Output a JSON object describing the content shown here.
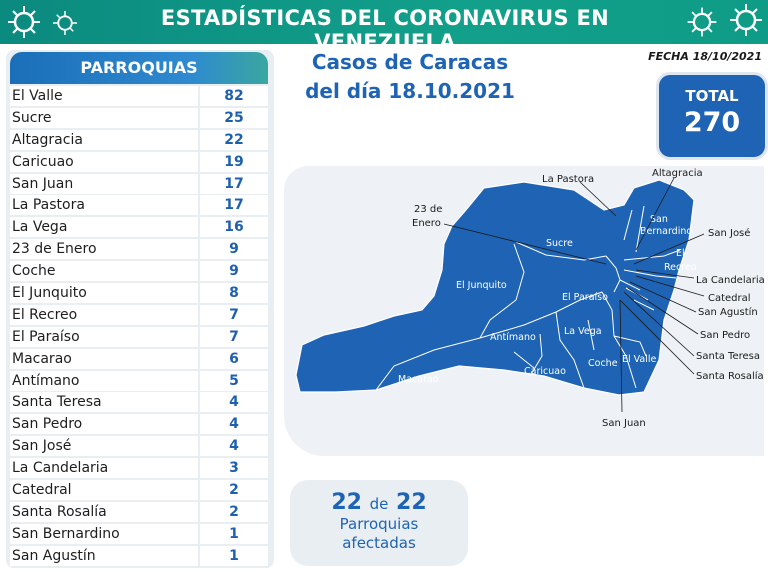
{
  "header": {
    "title": "ESTADÍSTICAS DEL CORONAVIRUS EN VENEZUELA"
  },
  "fecha": "FECHA 18/10/2021",
  "panel": {
    "title": "PARROQUIAS"
  },
  "parroquias": [
    {
      "name": "El Valle",
      "value": "82"
    },
    {
      "name": "Sucre",
      "value": "25"
    },
    {
      "name": "Altagracia",
      "value": "22"
    },
    {
      "name": "Caricuao",
      "value": "19"
    },
    {
      "name": "San Juan",
      "value": "17"
    },
    {
      "name": "La Pastora",
      "value": "17"
    },
    {
      "name": "La Vega",
      "value": "16"
    },
    {
      "name": "23 de Enero",
      "value": "9"
    },
    {
      "name": "Coche",
      "value": "9"
    },
    {
      "name": "El Junquito",
      "value": "8"
    },
    {
      "name": "El Recreo",
      "value": "7"
    },
    {
      "name": "El Paraíso",
      "value": "7"
    },
    {
      "name": "Macarao",
      "value": "6"
    },
    {
      "name": "Antímano",
      "value": "5"
    },
    {
      "name": "Santa Teresa",
      "value": "4"
    },
    {
      "name": "San Pedro",
      "value": "4"
    },
    {
      "name": "San José",
      "value": "4"
    },
    {
      "name": "La Candelaria",
      "value": "3"
    },
    {
      "name": "Catedral",
      "value": "2"
    },
    {
      "name": "Santa Rosalía",
      "value": "2"
    },
    {
      "name": "San Bernardino",
      "value": "1"
    },
    {
      "name": "San Agustín",
      "value": "1"
    }
  ],
  "casos": {
    "line1": "Casos de Caracas",
    "line2": "del día 18.10.2021"
  },
  "total": {
    "label": "TOTAL",
    "value": "270"
  },
  "map": {
    "outside": {
      "la_pastora": "La Pastora",
      "altagracia": "Altagracia",
      "enero_1": "23 de",
      "enero_2": "Enero",
      "san_jose": "San José",
      "la_candelaria": "La Candelaria",
      "catedral": "Catedral",
      "san_agustin": "San Agustín",
      "san_pedro": "San Pedro",
      "santa_teresa": "Santa Teresa",
      "santa_rosalia": "Santa Rosalía",
      "san_juan": "San Juan"
    },
    "inside": {
      "sucre": "Sucre",
      "el_junquito": "El Junquito",
      "san_bernardino_1": "San",
      "san_bernardino_2": "Bernardino",
      "el_recreo_1": "El",
      "el_recreo_2": "Recreo",
      "el_paraiso": "El Paraíso",
      "la_vega": "La Vega",
      "antimano": "Antímano",
      "macarao": "Macarao",
      "caricuao": "Caricuao",
      "coche": "Coche",
      "el_valle": "El Valle"
    },
    "fill_color": "#1f63b5"
  },
  "afectadas": {
    "num": "22",
    "de": "de",
    "total": "22",
    "line1": "Parroquias",
    "line2": "afectadas"
  }
}
